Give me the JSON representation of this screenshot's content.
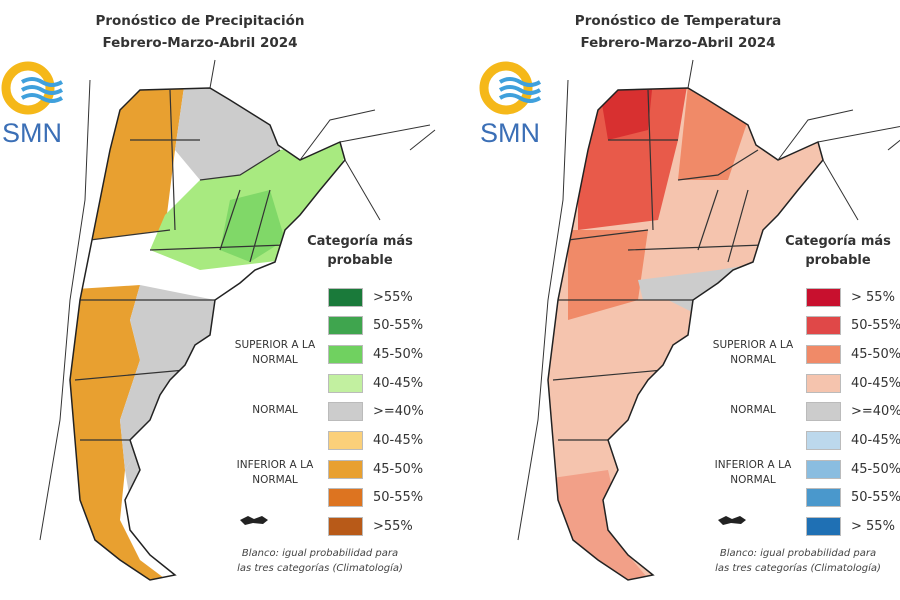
{
  "panels": [
    {
      "title_line1": "Pronóstico de Precipitación",
      "title_line2": "Febrero-Marzo-Abril 2024",
      "logo": "SMN",
      "legend_title_1": "Categoría más",
      "legend_title_2": "probable",
      "groups": {
        "upper": "SUPERIOR A LA NORMAL",
        "normal": "NORMAL",
        "lower": "INFERIOR A LA NORMAL"
      },
      "legend": [
        {
          "label": ">55%",
          "color": "#1a7a3a"
        },
        {
          "label": "50-55%",
          "color": "#3fa54e"
        },
        {
          "label": "45-50%",
          "color": "#70d160"
        },
        {
          "label": "40-45%",
          "color": "#c2f0a0"
        },
        {
          "label": ">=40%",
          "color": "#cccccc"
        },
        {
          "label": "40-45%",
          "color": "#fbd07a"
        },
        {
          "label": "45-50%",
          "color": "#e8a030"
        },
        {
          "label": "50-55%",
          "color": "#dd7420"
        },
        {
          "label": ">55%",
          "color": "#b85a18"
        }
      ],
      "note_1": "Blanco: igual probabilidad para",
      "note_2": "las tres categorías (Climatología)"
    },
    {
      "title_line1": "Pronóstico de Temperatura",
      "title_line2": "Febrero-Marzo-Abril 2024",
      "logo": "SMN",
      "legend_title_1": "Categoría más",
      "legend_title_2": "probable",
      "groups": {
        "upper": "SUPERIOR A LA NORMAL",
        "normal": "NORMAL",
        "lower": "INFERIOR A LA NORMAL"
      },
      "legend": [
        {
          "label": "> 55%",
          "color": "#c8102e"
        },
        {
          "label": "50-55%",
          "color": "#e04848"
        },
        {
          "label": "45-50%",
          "color": "#f08a68"
        },
        {
          "label": "40-45%",
          "color": "#f5c4ae"
        },
        {
          "label": ">=40%",
          "color": "#cccccc"
        },
        {
          "label": "40-45%",
          "color": "#bcd8ec"
        },
        {
          "label": "45-50%",
          "color": "#8abde0"
        },
        {
          "label": "50-55%",
          "color": "#4a98cc"
        },
        {
          "label": "> 55%",
          "color": "#1f70b4"
        }
      ],
      "note_1": "Blanco: igual probabilidad para",
      "note_2": "las tres categorías (Climatología)"
    }
  ]
}
